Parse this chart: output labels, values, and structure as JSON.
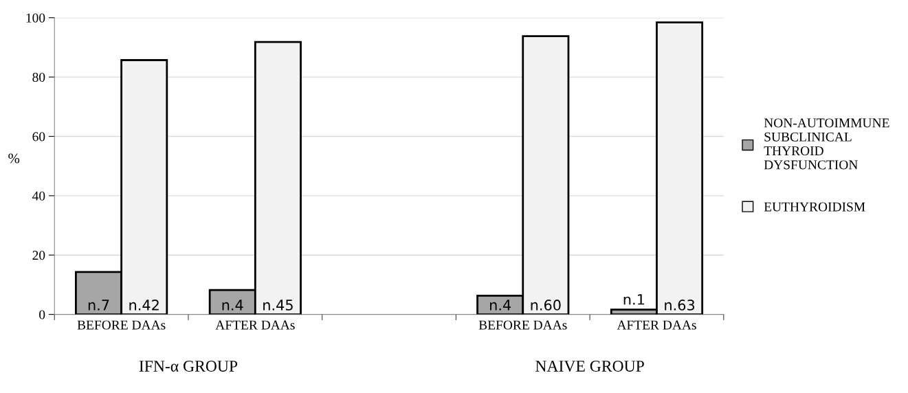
{
  "chart_data": {
    "type": "bar",
    "categories": [
      "BEFORE DAAs",
      "AFTER DAAs",
      null,
      "BEFORE DAAs",
      "AFTER DAAs"
    ],
    "series": [
      {
        "name": "NON-AUTOIMMUNE\nSUBCLINICAL\nTHYROID\nDYSFUNCTION",
        "color": "#a6a6a6",
        "values": [
          14.3,
          8.2,
          null,
          6.3,
          1.6
        ],
        "value_labels": [
          "n.7",
          "n.4",
          null,
          "n.4",
          "n.1"
        ]
      },
      {
        "name": "EUTHYROIDISM",
        "color": "#f2f2f2",
        "values": [
          85.7,
          91.8,
          null,
          93.8,
          98.4
        ],
        "value_labels": [
          "n.42",
          "n.45",
          null,
          "n.60",
          "n.63"
        ]
      }
    ],
    "ylabel": "%",
    "ylim": [
      0,
      100
    ],
    "yticks": [
      0,
      20,
      40,
      60,
      80,
      100
    ],
    "grid": "y",
    "legend": "right",
    "annotations": [
      "IFN-α GROUP",
      "NAIVE GROUP"
    ]
  }
}
